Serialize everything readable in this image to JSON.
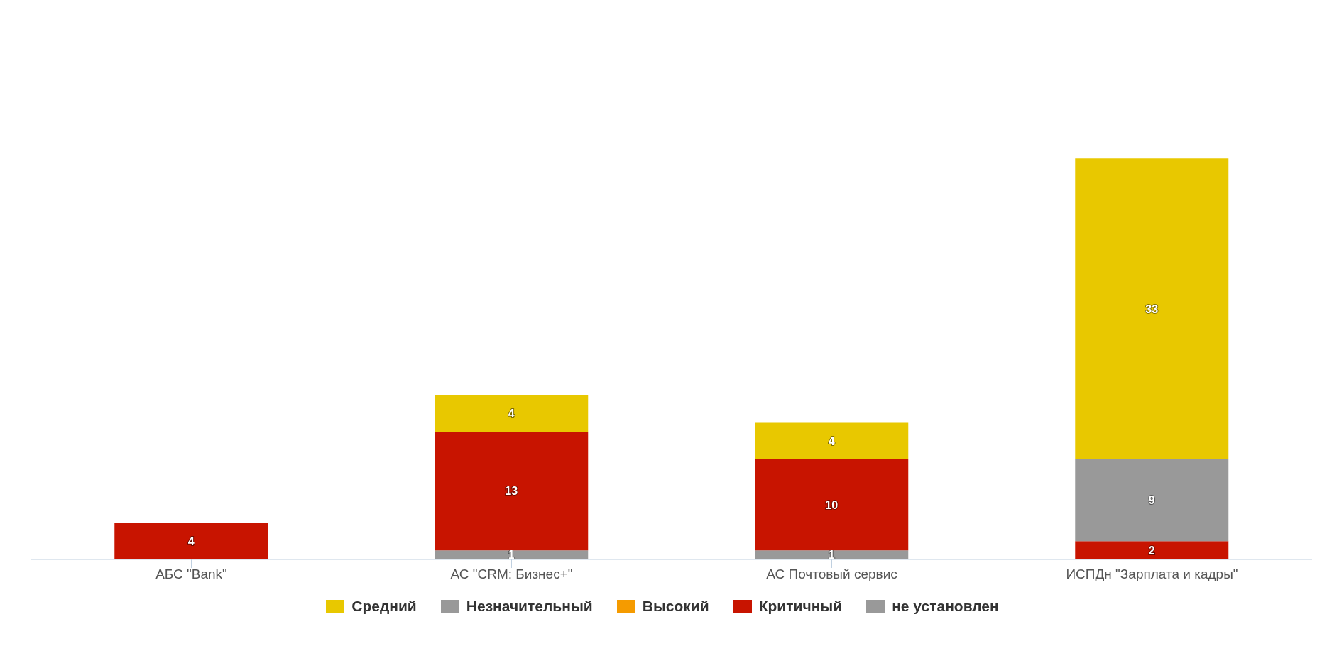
{
  "chart_data": {
    "type": "bar",
    "stacked": true,
    "categories": [
      "АБС \"Bank\"",
      "АС \"CRM: Бизнес+\"",
      "АС Почтовый сервис",
      "ИСПДн \"Зарплата и кадры\""
    ],
    "series": [
      {
        "name": "не установлен",
        "color": "#999999",
        "values": [
          null,
          1,
          1,
          null
        ]
      },
      {
        "name": "Критичный",
        "color": "#c81400",
        "values": [
          4,
          13,
          10,
          2
        ]
      },
      {
        "name": "Высокий",
        "color": "#f59b00",
        "values": [
          null,
          null,
          null,
          null
        ]
      },
      {
        "name": "Незначительный",
        "color": "#999999",
        "values": [
          null,
          null,
          null,
          9
        ]
      },
      {
        "name": "Средний",
        "color": "#e8c800",
        "values": [
          null,
          4,
          4,
          33
        ]
      }
    ],
    "tick_labels": "x",
    "legend": "bottom",
    "data_labels": true
  }
}
